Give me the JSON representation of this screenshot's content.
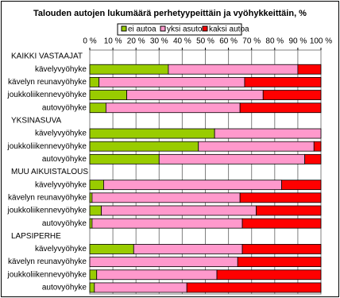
{
  "chart_data": {
    "type": "stacked-bar-horizontal",
    "title": "Talouden autojen lukumäärä perhetyypeittäin ja vyöhykkeittäin, %",
    "categories": [
      "KAIKKI VASTAAJAT",
      "kävelyvyöhyke",
      "kävelyn reunavyöhyke",
      "joukkoliikennevyöhyke",
      "autovyöhyke",
      "YKSINASUVA",
      "kävelyvyöhyke",
      "joukkoliikennevyöhyke",
      "autovyöhyke",
      "MUU AIKUISTALOUS",
      "kävelyvyöhyke",
      "kävelyn reunavyöhyke",
      "joukkoliikennevyöhyke",
      "autovyöhyke",
      "LAPSIPERHE",
      "kävelyvyöhyke",
      "kävelyn reunavyöhyke",
      "joukkoliikennevyöhyke",
      "autovyöhyke"
    ],
    "series": [
      {
        "name": "ei autoa",
        "color": "#99cc00",
        "values": [
          null,
          34,
          4,
          16,
          7,
          null,
          54,
          47,
          30,
          null,
          6,
          1,
          5,
          1,
          null,
          19,
          0,
          3,
          2
        ]
      },
      {
        "name": "yksi asuto",
        "color": "#ff99cc",
        "values": [
          null,
          56,
          63,
          59,
          58,
          null,
          46,
          50,
          63,
          null,
          77,
          64,
          67,
          65,
          null,
          47,
          64,
          52,
          40
        ]
      },
      {
        "name": "kaksi autoa",
        "color": "#ff0000",
        "values": [
          null,
          10,
          33,
          25,
          35,
          null,
          0,
          3,
          7,
          null,
          17,
          35,
          28,
          34,
          null,
          34,
          36,
          45,
          58
        ]
      }
    ],
    "xlim": [
      0,
      100
    ],
    "xticks": [
      {
        "value": 0,
        "label": "0 %"
      },
      {
        "value": 10,
        "label": "10 %"
      },
      {
        "value": 20,
        "label": "20 %"
      },
      {
        "value": 30,
        "label": "30 %"
      },
      {
        "value": 40,
        "label": "40 %"
      },
      {
        "value": 50,
        "label": "50 %"
      },
      {
        "value": 60,
        "label": "60 %"
      },
      {
        "value": 70,
        "label": "70 %"
      },
      {
        "value": 80,
        "label": "80 %"
      },
      {
        "value": 90,
        "label": "90 %"
      },
      {
        "value": 100,
        "label": "100 %"
      }
    ],
    "grid": true
  }
}
